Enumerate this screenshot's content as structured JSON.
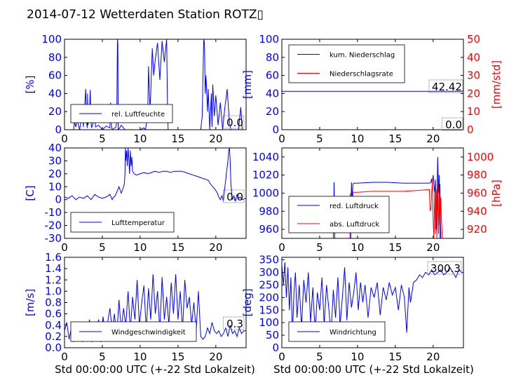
{
  "figure": {
    "title": "2014-07-12 Wetterdaten Station ROTZ▯",
    "xlabel": "Std 00:00:00 UTC (+-22 Std Lokalzeit)"
  },
  "colors": {
    "primary": "#0000ff",
    "secondary": "#ff0000",
    "axis": "#000000",
    "background": "#ffffff"
  },
  "chart_data": [
    {
      "type": "line",
      "ylabel": "[%]",
      "xlim": [
        0,
        24
      ],
      "ylim": [
        0,
        100
      ],
      "xticks": [
        0,
        5,
        10,
        15,
        20
      ],
      "yticks": [
        0,
        20,
        40,
        60,
        80,
        100
      ],
      "legend": {
        "position": "lower-left",
        "labels": [
          "rel. Luftfeuchte"
        ]
      },
      "last_value_label": "0.0",
      "series": [
        {
          "name": "rel. Luftfeuchte",
          "color": "#0000ff",
          "axis": "left",
          "x": [
            0,
            1.2,
            1.3,
            1.5,
            1.6,
            2,
            2.1,
            2.4,
            2.5,
            2.8,
            2.9,
            3,
            3.05,
            3.1,
            3.3,
            3.4,
            3.5,
            3.6,
            4,
            4.1,
            4.5,
            5,
            5.5,
            6,
            6.1,
            6.2,
            6.3,
            6.8,
            6.9,
            7,
            7.05,
            7.1,
            7.3,
            7.5,
            8,
            9,
            10,
            10.5,
            10.7,
            11,
            11.1,
            11.3,
            11.4,
            11.6,
            11.8,
            12,
            12.3,
            12.6,
            12.9,
            13.2,
            13.5,
            13.6,
            13.7,
            14,
            16,
            18,
            18.2,
            18.4,
            18.5,
            18.6,
            18.7,
            18.9,
            19,
            19.2,
            19.4,
            19.5,
            19.6,
            19.8,
            20,
            20.3,
            20.6,
            20.9,
            21.2,
            21.5,
            21.8,
            22,
            23,
            23.3,
            23.5,
            24
          ],
          "y": [
            0,
            0,
            8,
            3,
            12,
            0,
            6,
            18,
            3,
            45,
            10,
            2,
            40,
            5,
            20,
            44,
            8,
            2,
            15,
            3,
            5,
            0,
            4,
            2,
            30,
            5,
            0,
            3,
            10,
            100,
            95,
            0,
            2,
            5,
            0,
            0,
            0,
            2,
            0,
            15,
            70,
            22,
            40,
            90,
            60,
            78,
            96,
            55,
            98,
            75,
            100,
            30,
            0,
            0,
            0,
            0,
            15,
            100,
            96,
            40,
            60,
            20,
            45,
            0,
            40,
            3,
            50,
            15,
            38,
            5,
            30,
            0,
            25,
            45,
            8,
            0,
            0,
            25,
            0,
            0
          ]
        }
      ]
    },
    {
      "type": "line",
      "ylabel": "[mm]",
      "y2label": "[mm/std]",
      "xlim": [
        0,
        24
      ],
      "ylim": [
        0,
        100
      ],
      "y2lim": [
        0,
        50
      ],
      "xticks": [
        0,
        5,
        10,
        15,
        20
      ],
      "yticks": [
        0,
        20,
        40,
        60,
        80,
        100
      ],
      "y2ticks": [
        0,
        10,
        20,
        30,
        40,
        50
      ],
      "legend": {
        "position": "upper-left",
        "labels": [
          "kum. Niederschlag",
          "Niederschlagsrate"
        ]
      },
      "value_labels": [
        "42.42",
        "0.0"
      ],
      "series": [
        {
          "name": "kum. Niederschlag",
          "color": "#0000ff",
          "axis": "left",
          "x": [
            0,
            24
          ],
          "y": [
            42.42,
            42.42
          ]
        },
        {
          "name": "Niederschlagsrate",
          "color": "#ff0000",
          "axis": "right",
          "x": [
            0,
            24
          ],
          "y": [
            0,
            0
          ]
        }
      ]
    },
    {
      "type": "line",
      "ylabel": "[C]",
      "xlim": [
        0,
        24
      ],
      "ylim": [
        -30,
        40
      ],
      "xticks": [
        0,
        5,
        10,
        15,
        20
      ],
      "yticks": [
        -30,
        -20,
        -10,
        0,
        10,
        20,
        30,
        40
      ],
      "legend": {
        "position": "lower-left",
        "labels": [
          "Lufttemperatur"
        ]
      },
      "last_value_label": "0.0",
      "series": [
        {
          "name": "Lufttemperatur",
          "color": "#0000ff",
          "axis": "left",
          "x": [
            0,
            0.5,
            1,
            1.5,
            2,
            2.5,
            3,
            3.5,
            4,
            4.5,
            5,
            5.5,
            6,
            6.3,
            6.5,
            6.7,
            7,
            7.2,
            7.5,
            7.7,
            7.9,
            8,
            8.05,
            8.1,
            8.2,
            8.3,
            8.4,
            8.5,
            8.6,
            8.7,
            8.8,
            8.9,
            9,
            9.2,
            9.5,
            10,
            10.5,
            11,
            11.5,
            12,
            12.5,
            13,
            13.5,
            14,
            14.5,
            15,
            15.5,
            16,
            16.5,
            17,
            17.5,
            18,
            18.5,
            19,
            19.3,
            19.6,
            19.9,
            20.2,
            20.4,
            20.6,
            20.8,
            21,
            21.2,
            21.4,
            21.6,
            21.7,
            21.8,
            21.9,
            22,
            22.1,
            22.2,
            22.4,
            22.6,
            22.8,
            23,
            23.2,
            23.5,
            24
          ],
          "y": [
            2,
            1,
            3,
            0,
            2,
            1,
            3,
            0,
            4,
            2,
            1,
            2,
            4,
            0,
            2,
            3,
            7,
            10,
            5,
            8,
            12,
            20,
            40,
            30,
            38,
            26,
            40,
            32,
            20,
            38,
            26,
            33,
            22,
            20,
            19,
            20,
            21,
            20,
            21,
            22,
            21,
            22,
            22,
            21,
            22,
            22,
            22,
            21,
            20,
            19,
            18,
            17,
            16,
            15,
            12,
            10,
            8,
            5,
            2,
            0,
            3,
            -1,
            10,
            20,
            30,
            38,
            40,
            30,
            12,
            5,
            0,
            3,
            -1,
            4,
            1,
            2,
            0,
            1
          ]
        }
      ]
    },
    {
      "type": "line",
      "y2label": "[hPa]",
      "xlim": [
        0,
        24
      ],
      "ylim": [
        950,
        1050
      ],
      "y2lim": [
        910,
        1010
      ],
      "xticks": [
        0,
        5,
        10,
        15,
        20
      ],
      "yticks": [
        960,
        980,
        1000,
        1020,
        1040
      ],
      "y2ticks": [
        920,
        940,
        960,
        980,
        1000
      ],
      "legend": {
        "position": "lower-left",
        "labels": [
          "red. Luftdruck",
          "abs. Luftdruck"
        ]
      },
      "series": [
        {
          "name": "red. Luftdruck",
          "color": "#0000ff",
          "axis": "left",
          "x": [
            6.8,
            6.9,
            7,
            9.1,
            9.2,
            9.3,
            9.4,
            9.5,
            10,
            12,
            14,
            16,
            18,
            19.5,
            19.7,
            19.8,
            19.85,
            19.9,
            20,
            20.2,
            20.3,
            20.4,
            20.5,
            20.6,
            20.7,
            20.8,
            20.85,
            20.9,
            21
          ],
          "y": [
            950,
            1012,
            950,
            950,
            1012,
            990,
            1010,
            1011,
            1011,
            1012,
            1012,
            1011,
            1011,
            1011,
            1012,
            1016,
            1012,
            1013,
            1020,
            1000,
            1015,
            960,
            990,
            1040,
            1000,
            1020,
            965,
            1010,
            950
          ]
        },
        {
          "name": "abs. Luftdruck",
          "color": "#ff0000",
          "axis": "right",
          "x": [
            9,
            9.05,
            9.1,
            9.2,
            9.3,
            9.4,
            10,
            12,
            14,
            16,
            18,
            19.5,
            19.6,
            19.7,
            19.8,
            19.85,
            19.9,
            20,
            20.1,
            20.2,
            20.3,
            20.4,
            20.5,
            20.6,
            20.7,
            20.8,
            20.9,
            21,
            21.1,
            21.2
          ],
          "y": [
            910,
            960,
            915,
            958,
            920,
            961,
            961,
            962,
            962,
            962,
            963,
            964,
            940,
            943,
            960,
            966,
            975,
            930,
            910,
            962,
            915,
            964,
            910,
            970,
            915,
            960,
            910,
            955,
            930,
            910
          ]
        }
      ]
    },
    {
      "type": "line",
      "ylabel": "[m/s]",
      "xlim": [
        0,
        24
      ],
      "ylim": [
        0,
        1.6
      ],
      "xticks": [
        0,
        5,
        10,
        15,
        20
      ],
      "yticks": [
        0.0,
        0.2,
        0.4,
        0.6,
        0.8,
        1.0,
        1.2,
        1.4,
        1.6
      ],
      "legend": {
        "position": "lower-left",
        "labels": [
          "Windgeschwindigkeit"
        ]
      },
      "last_value_label": "0.3",
      "series": [
        {
          "name": "Windgeschwindigkeit",
          "color": "#0000ff",
          "axis": "left",
          "x": [
            0,
            0.3,
            0.6,
            0.9,
            1.2,
            1.5,
            1.8,
            2.1,
            2.4,
            2.7,
            3,
            3.3,
            3.6,
            3.9,
            4.2,
            4.5,
            4.8,
            5.1,
            5.4,
            5.7,
            6,
            6.3,
            6.6,
            6.9,
            7.2,
            7.5,
            7.8,
            8.1,
            8.4,
            8.7,
            9,
            9.3,
            9.6,
            9.9,
            10.2,
            10.5,
            10.8,
            11.1,
            11.4,
            11.7,
            12,
            12.3,
            12.6,
            12.9,
            13.2,
            13.5,
            13.8,
            14.1,
            14.4,
            14.7,
            15,
            15.3,
            15.6,
            15.9,
            16.2,
            16.5,
            16.8,
            17.1,
            17.4,
            17.7,
            18,
            18.3,
            18.6,
            18.9,
            19.2,
            19.5,
            19.8,
            20.1,
            20.4,
            20.7,
            21,
            21.3,
            21.6,
            21.9,
            22.2,
            22.5,
            22.8,
            23.1,
            23.4,
            23.7,
            24
          ],
          "y": [
            0.3,
            0.45,
            0.15,
            0.35,
            0.1,
            0.4,
            0.2,
            0.45,
            0.1,
            0.3,
            0.15,
            0.5,
            0.1,
            0.35,
            0.2,
            0.5,
            0.1,
            0.55,
            0.2,
            0.45,
            0.7,
            0.3,
            0.6,
            0.2,
            0.85,
            0.3,
            0.7,
            0.4,
            1.0,
            0.3,
            0.9,
            0.5,
            1.2,
            0.4,
            0.8,
            1.1,
            0.3,
            1.05,
            0.5,
            1.3,
            0.6,
            1.0,
            0.3,
            1.25,
            0.5,
            0.9,
            0.4,
            1.15,
            0.6,
            1.3,
            0.5,
            1.0,
            0.3,
            1.2,
            0.7,
            0.9,
            0.4,
            0.8,
            0.3,
            1.0,
            0.2,
            0.15,
            0.2,
            0.35,
            0.25,
            0.45,
            0.3,
            0.25,
            0.3,
            0.2,
            0.25,
            0.35,
            0.2,
            0.4,
            0.25,
            0.3,
            0.2,
            0.35,
            0.25,
            0.3,
            0.3
          ]
        }
      ]
    },
    {
      "type": "line",
      "ylabel": "[deg]",
      "xlim": [
        0,
        24
      ],
      "ylim": [
        0,
        360
      ],
      "xticks": [
        0,
        5,
        10,
        15,
        20
      ],
      "yticks": [
        0,
        50,
        100,
        150,
        200,
        250,
        300,
        350
      ],
      "legend": {
        "position": "lower-left",
        "labels": [
          "Windrichtung"
        ]
      },
      "last_value_label": "300.3",
      "series": [
        {
          "name": "Windrichtung",
          "color": "#0000ff",
          "axis": "left",
          "x": [
            0,
            0.2,
            0.4,
            0.6,
            0.8,
            1,
            1.2,
            1.4,
            1.6,
            1.8,
            2,
            2.3,
            2.6,
            2.9,
            3.2,
            3.5,
            3.8,
            4.1,
            4.4,
            4.7,
            5,
            5.3,
            5.6,
            5.9,
            6.2,
            6.5,
            6.8,
            7.1,
            7.4,
            7.7,
            8,
            8.3,
            8.6,
            8.9,
            9.2,
            9.5,
            9.8,
            10.1,
            10.4,
            10.7,
            11,
            11.4,
            11.8,
            12.2,
            12.6,
            13,
            13.4,
            13.8,
            14.2,
            14.6,
            15,
            15.4,
            15.8,
            16.2,
            16.5,
            16.8,
            17,
            17.4,
            17.8,
            18.2,
            18.6,
            19,
            19.4,
            19.8,
            20.2,
            20.6,
            21,
            21.4,
            21.8,
            22.2,
            22.6,
            23,
            23.4,
            23.8,
            24
          ],
          "y": [
            330,
            250,
            340,
            200,
            320,
            150,
            280,
            50,
            220,
            300,
            120,
            250,
            80,
            270,
            180,
            300,
            100,
            240,
            60,
            220,
            150,
            280,
            90,
            250,
            160,
            50,
            230,
            120,
            280,
            90,
            200,
            320,
            110,
            260,
            160,
            220,
            300,
            150,
            260,
            180,
            250,
            120,
            240,
            200,
            260,
            130,
            240,
            190,
            260,
            210,
            240,
            150,
            250,
            200,
            60,
            240,
            180,
            260,
            270,
            290,
            280,
            300,
            290,
            310,
            290,
            300,
            310,
            290,
            300,
            320,
            300,
            280,
            310,
            300,
            300
          ]
        }
      ]
    }
  ]
}
